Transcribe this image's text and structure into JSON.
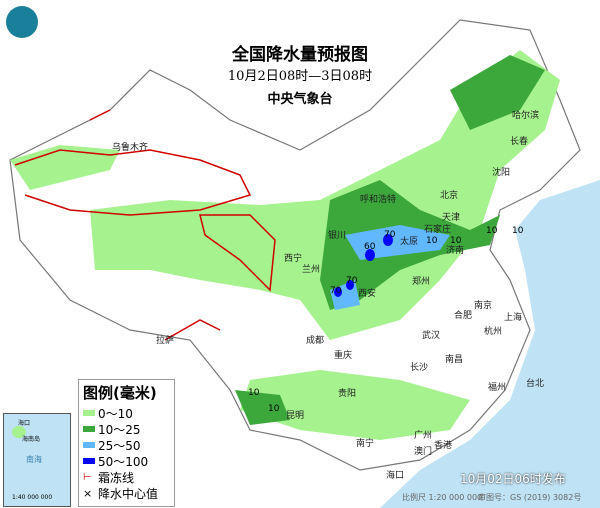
{
  "header": {
    "title": "全国降水量预报图",
    "period": "10月2日08时—3日08时",
    "organization": "中央气象台"
  },
  "legend": {
    "title": "图例(毫米)",
    "items": [
      {
        "label": "0～10",
        "color": "#a6f28f"
      },
      {
        "label": "10～25",
        "color": "#3ca83c"
      },
      {
        "label": "25～50",
        "color": "#61b8ff"
      },
      {
        "label": "50～100",
        "color": "#0000fe"
      },
      {
        "label": "霜冻线",
        "color": "#d00000"
      },
      {
        "label": "降水中心值",
        "color": "#000000"
      }
    ]
  },
  "cities": [
    "乌鲁木齐",
    "哈尔滨",
    "长春",
    "沈阳",
    "北京",
    "天津",
    "石家庄",
    "呼和浩特",
    "太原",
    "济南",
    "银川",
    "兰州",
    "西宁",
    "西安",
    "郑州",
    "合肥",
    "南京",
    "上海",
    "杭州",
    "武汉",
    "成都",
    "重庆",
    "拉萨",
    "长沙",
    "南昌",
    "福州",
    "台北",
    "贵阳",
    "昆明",
    "南宁",
    "广州",
    "澳门",
    "香港",
    "海口"
  ],
  "center_values": [
    "60",
    "70",
    "70",
    "70",
    "10",
    "10",
    "10",
    "10",
    "10",
    "10"
  ],
  "inset": {
    "sea": "南海",
    "label": "海口",
    "island": "海南岛",
    "scale": "1:40 000 000"
  },
  "footer": {
    "issued": "10月02日06时发布",
    "scale": "比例尺 1:20 000 000",
    "review": "审图号：GS (2019) 3082号"
  },
  "colors": {
    "sea": "#bfe3f5",
    "land": "#ffffff",
    "border": "#777777"
  }
}
